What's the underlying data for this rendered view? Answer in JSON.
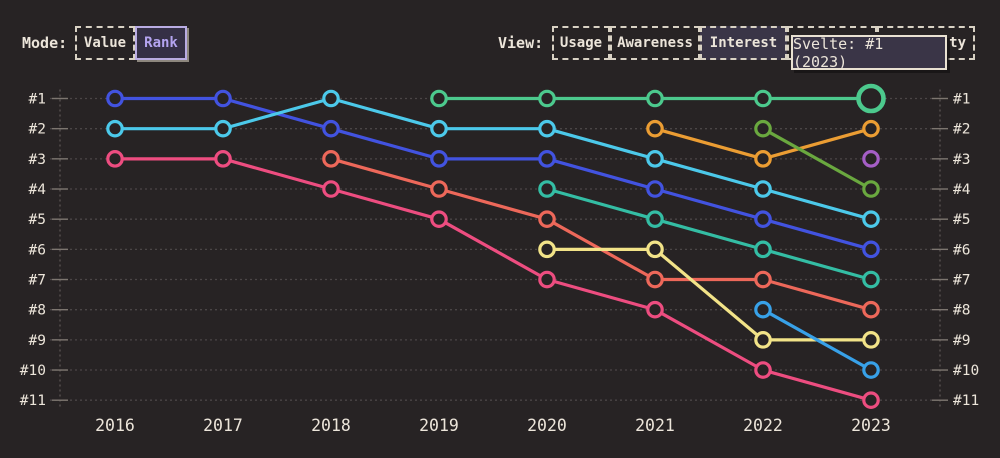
{
  "header": {
    "mode_label": "Mode:",
    "mode_options": [
      {
        "label": "Value",
        "selected": false
      },
      {
        "label": "Rank",
        "selected": true
      }
    ],
    "view_label": "View:",
    "view_options": [
      {
        "label": "Usage",
        "selected": false
      },
      {
        "label": "Awareness",
        "selected": false
      },
      {
        "label": "Interest",
        "selected": true
      },
      {
        "label": "",
        "selected": false
      },
      {
        "label": "ty",
        "selected": false
      }
    ]
  },
  "tooltip": {
    "text": "Svelte: #1 (2023)"
  },
  "chart_data": {
    "type": "line",
    "variant": "bump-rank",
    "x": [
      "2016",
      "2017",
      "2018",
      "2019",
      "2020",
      "2021",
      "2022",
      "2023"
    ],
    "rank_axis": {
      "min": 1,
      "max": 11,
      "prefix": "#",
      "sides": [
        "left",
        "right"
      ]
    },
    "grid": "dotted",
    "legend": "none",
    "hovered_series": "svelte",
    "series": [
      {
        "name": "blue",
        "color": "#4253e0",
        "ranks": [
          1,
          1,
          2,
          3,
          3,
          4,
          5,
          6
        ]
      },
      {
        "name": "cyan",
        "color": "#4cc9ea",
        "ranks": [
          2,
          2,
          1,
          2,
          2,
          3,
          4,
          5
        ]
      },
      {
        "name": "pink",
        "color": "#ed4d80",
        "ranks": [
          3,
          3,
          4,
          5,
          7,
          8,
          10,
          11
        ]
      },
      {
        "name": "salmon",
        "color": "#ed685a",
        "ranks": [
          null,
          null,
          3,
          4,
          5,
          7,
          7,
          8
        ]
      },
      {
        "name": "teal",
        "color": "#34bda4",
        "ranks": [
          null,
          null,
          null,
          null,
          4,
          5,
          6,
          7
        ]
      },
      {
        "name": "yellow",
        "color": "#f2e388",
        "ranks": [
          null,
          null,
          null,
          null,
          6,
          6,
          9,
          9
        ]
      },
      {
        "name": "amber",
        "color": "#eb9d33",
        "ranks": [
          null,
          null,
          null,
          null,
          null,
          2,
          3,
          2
        ]
      },
      {
        "name": "olive",
        "color": "#6aa83f",
        "ranks": [
          null,
          null,
          null,
          null,
          null,
          null,
          2,
          4
        ]
      },
      {
        "name": "sky-blue",
        "color": "#38a1e8",
        "ranks": [
          null,
          null,
          null,
          null,
          null,
          null,
          8,
          10
        ]
      },
      {
        "name": "purple",
        "color": "#a55ec6",
        "ranks": [
          null,
          null,
          null,
          null,
          null,
          null,
          null,
          3
        ]
      },
      {
        "name": "svelte",
        "color": "#4cc98d",
        "ranks": [
          null,
          null,
          null,
          1,
          1,
          1,
          1,
          1
        ],
        "highlight_last": true
      }
    ]
  }
}
